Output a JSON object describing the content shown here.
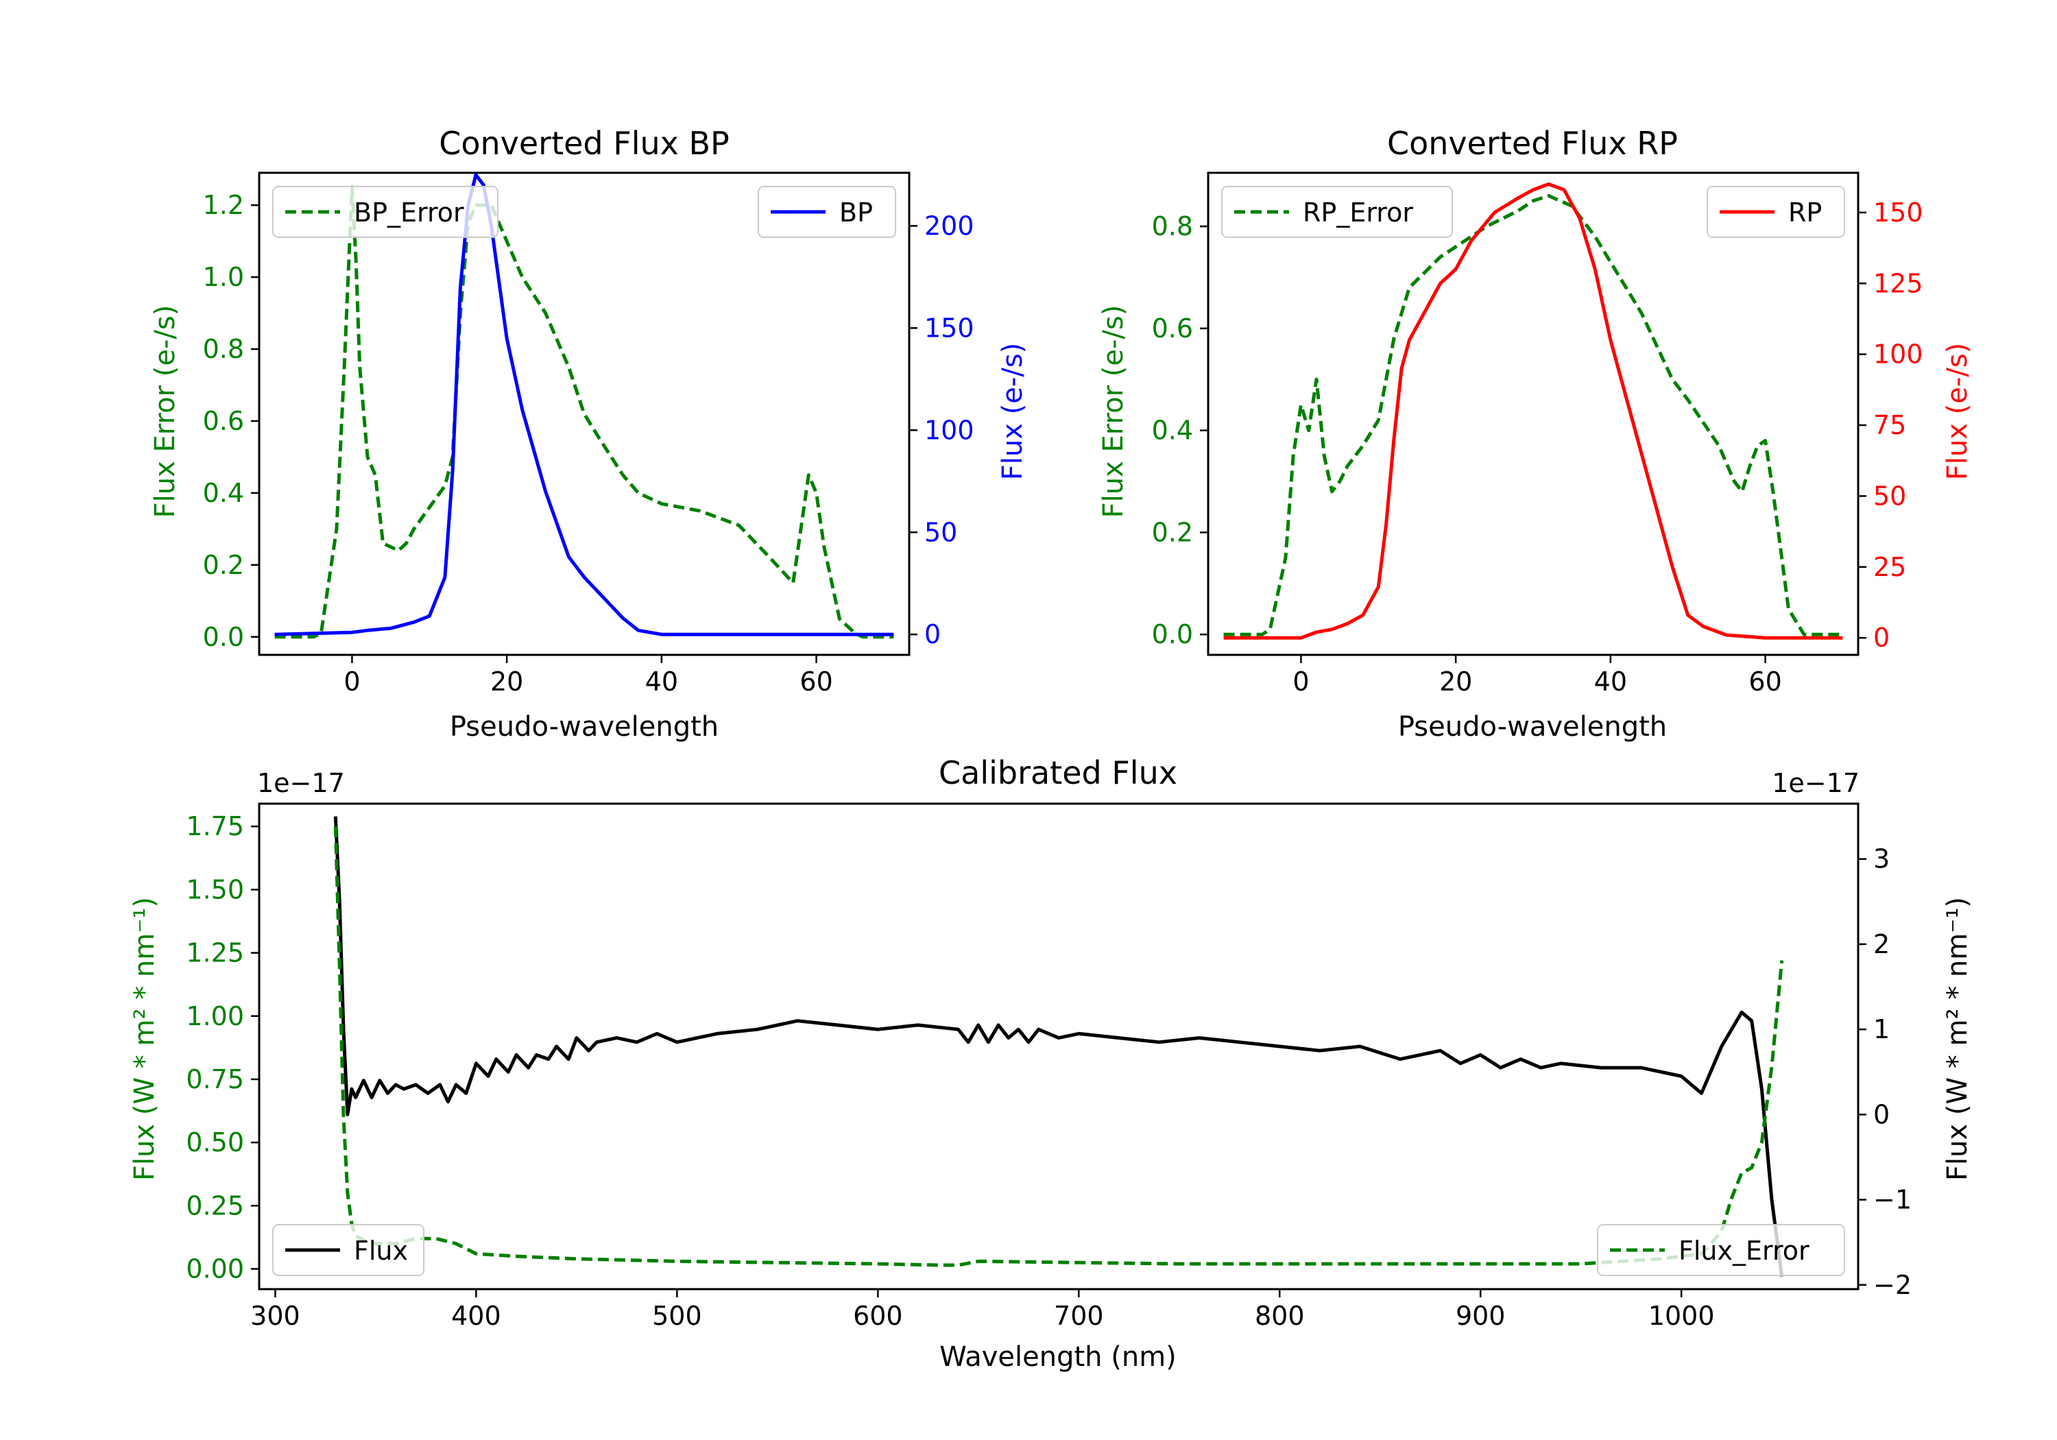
{
  "chart_data": [
    {
      "id": "bp",
      "type": "line",
      "title": "Converted Flux BP",
      "xlabel": "Pseudo-wavelength",
      "xlim": [
        -12,
        72
      ],
      "xticks": [
        0,
        20,
        40,
        60
      ],
      "left_axis": {
        "label": "Flux Error (e-/s)",
        "color": "#008000",
        "ylim": [
          -0.05,
          1.29
        ],
        "ticks": [
          0.0,
          0.2,
          0.4,
          0.6,
          0.8,
          1.0,
          1.2
        ],
        "tick_labels": [
          "0.0",
          "0.2",
          "0.4",
          "0.6",
          "0.8",
          "1.0",
          "1.2"
        ]
      },
      "right_axis": {
        "label": "Flux (e-/s)",
        "color": "#0000ff",
        "ylim": [
          -10,
          226
        ],
        "ticks": [
          0,
          50,
          100,
          150,
          200
        ],
        "tick_labels": [
          "0",
          "50",
          "100",
          "150",
          "200"
        ]
      },
      "series": [
        {
          "name": "BP_Error",
          "axis": "left",
          "color": "#008000",
          "style": "dashed",
          "x": [
            -10,
            -5,
            -4,
            -2,
            -1,
            0,
            0.5,
            1,
            2,
            3,
            4,
            5,
            6,
            7,
            8,
            10,
            12,
            13,
            14,
            15,
            16,
            18,
            20,
            22,
            25,
            28,
            30,
            32,
            35,
            37,
            40,
            45,
            50,
            54,
            57,
            58,
            59,
            60,
            61,
            63,
            65,
            66,
            70
          ],
          "y": [
            0,
            0,
            0.01,
            0.3,
            0.75,
            1.25,
            1.05,
            0.75,
            0.5,
            0.45,
            0.26,
            0.25,
            0.24,
            0.26,
            0.3,
            0.36,
            0.42,
            0.5,
            0.9,
            1.15,
            1.2,
            1.2,
            1.1,
            1.0,
            0.9,
            0.75,
            0.62,
            0.55,
            0.45,
            0.4,
            0.37,
            0.35,
            0.31,
            0.22,
            0.15,
            0.3,
            0.45,
            0.4,
            0.25,
            0.05,
            0.01,
            0,
            0
          ]
        },
        {
          "name": "BP",
          "axis": "right",
          "color": "#0000ff",
          "style": "solid",
          "x": [
            -10,
            0,
            2,
            5,
            8,
            10,
            12,
            13,
            14,
            15,
            16,
            17,
            18,
            20,
            22,
            25,
            28,
            30,
            32,
            35,
            37,
            40,
            45,
            50,
            55,
            60,
            70
          ],
          "y": [
            0,
            1,
            2,
            3,
            6,
            9,
            28,
            80,
            170,
            210,
            225,
            220,
            200,
            145,
            110,
            70,
            38,
            28,
            20,
            8,
            2,
            0,
            0,
            0,
            0,
            0,
            0
          ]
        }
      ],
      "legend": [
        {
          "label": "BP_Error",
          "placement": "upper-left"
        },
        {
          "label": "BP",
          "placement": "upper-right"
        }
      ]
    },
    {
      "id": "rp",
      "type": "line",
      "title": "Converted Flux RP",
      "xlabel": "Pseudo-wavelength",
      "xlim": [
        -12,
        72
      ],
      "xticks": [
        0,
        20,
        40,
        60
      ],
      "left_axis": {
        "label": "Flux Error (e-/s)",
        "color": "#008000",
        "ylim": [
          -0.04,
          0.905
        ],
        "ticks": [
          0.0,
          0.2,
          0.4,
          0.6,
          0.8
        ],
        "tick_labels": [
          "0.0",
          "0.2",
          "0.4",
          "0.6",
          "0.8"
        ]
      },
      "right_axis": {
        "label": "Flux (e-/s)",
        "color": "#ff0000",
        "ylim": [
          -6,
          164
        ],
        "ticks": [
          0,
          25,
          50,
          75,
          100,
          125,
          150
        ],
        "tick_labels": [
          "0",
          "25",
          "50",
          "75",
          "100",
          "125",
          "150"
        ]
      },
      "series": [
        {
          "name": "RP_Error",
          "axis": "left",
          "color": "#008000",
          "style": "dashed",
          "x": [
            -10,
            -5,
            -4,
            -2,
            -1,
            0,
            1,
            2,
            3,
            4,
            5,
            6,
            8,
            10,
            12,
            14,
            16,
            18,
            20,
            24,
            28,
            30,
            32,
            35,
            38,
            40,
            44,
            48,
            50,
            54,
            56,
            57,
            58,
            59,
            60,
            61,
            63,
            65,
            66,
            70
          ],
          "y": [
            0,
            0,
            0.01,
            0.15,
            0.35,
            0.45,
            0.4,
            0.5,
            0.35,
            0.28,
            0.3,
            0.33,
            0.37,
            0.42,
            0.58,
            0.68,
            0.71,
            0.74,
            0.76,
            0.8,
            0.83,
            0.85,
            0.86,
            0.84,
            0.78,
            0.73,
            0.63,
            0.5,
            0.46,
            0.37,
            0.3,
            0.28,
            0.33,
            0.37,
            0.38,
            0.28,
            0.05,
            0,
            0,
            0
          ]
        },
        {
          "name": "RP",
          "axis": "right",
          "color": "#ff0000",
          "style": "solid",
          "x": [
            -10,
            0,
            2,
            4,
            6,
            8,
            10,
            11,
            12,
            13,
            14,
            16,
            18,
            20,
            22,
            25,
            28,
            30,
            32,
            34,
            36,
            38,
            40,
            42,
            45,
            48,
            50,
            52,
            55,
            60,
            70
          ],
          "y": [
            0,
            0,
            2,
            3,
            5,
            8,
            18,
            40,
            70,
            95,
            105,
            115,
            125,
            130,
            140,
            150,
            155,
            158,
            160,
            158,
            148,
            130,
            105,
            85,
            55,
            25,
            8,
            4,
            1,
            0,
            0
          ]
        }
      ],
      "legend": [
        {
          "label": "RP_Error",
          "placement": "upper-left"
        },
        {
          "label": "RP",
          "placement": "upper-right"
        }
      ]
    },
    {
      "id": "cal",
      "type": "line",
      "title": "Calibrated Flux",
      "xlabel": "Wavelength (nm)",
      "xlim": [
        292,
        1088
      ],
      "xticks": [
        300,
        400,
        500,
        600,
        700,
        800,
        900,
        1000
      ],
      "left_axis": {
        "label": "Flux (W * m² * nm⁻¹)",
        "color": "#008000",
        "ylim": [
          -0.08,
          1.84
        ],
        "ticks": [
          0.0,
          0.25,
          0.5,
          0.75,
          1.0,
          1.25,
          1.5,
          1.75
        ],
        "tick_labels": [
          "0.00",
          "0.25",
          "0.50",
          "0.75",
          "1.00",
          "1.25",
          "1.50",
          "1.75"
        ],
        "offset_label": "1e−17"
      },
      "right_axis": {
        "label": "Flux (W * m² * nm⁻¹)",
        "color": "#000000",
        "ylim": [
          -2.05,
          3.65
        ],
        "ticks": [
          -2,
          -1,
          0,
          1,
          2,
          3
        ],
        "tick_labels": [
          "−2",
          "−1",
          "0",
          "1",
          "2",
          "3"
        ],
        "offset_label": "1e−17"
      },
      "series": [
        {
          "name": "Flux",
          "axis": "right",
          "color": "#000000",
          "style": "solid",
          "x": [
            330,
            332,
            334,
            336,
            338,
            340,
            344,
            348,
            352,
            356,
            360,
            364,
            370,
            376,
            382,
            386,
            390,
            395,
            400,
            406,
            410,
            416,
            420,
            426,
            430,
            436,
            440,
            446,
            450,
            456,
            460,
            470,
            480,
            490,
            500,
            520,
            540,
            560,
            580,
            600,
            620,
            640,
            645,
            650,
            655,
            660,
            665,
            670,
            675,
            680,
            690,
            700,
            720,
            740,
            760,
            780,
            800,
            820,
            840,
            860,
            880,
            890,
            900,
            910,
            920,
            930,
            940,
            960,
            980,
            1000,
            1010,
            1020,
            1030,
            1035,
            1040,
            1045,
            1050
          ],
          "y": [
            3.5,
            2.5,
            1.0,
            0.0,
            0.3,
            0.2,
            0.4,
            0.2,
            0.4,
            0.25,
            0.35,
            0.3,
            0.35,
            0.25,
            0.35,
            0.15,
            0.35,
            0.25,
            0.6,
            0.45,
            0.65,
            0.5,
            0.7,
            0.55,
            0.7,
            0.65,
            0.8,
            0.65,
            0.9,
            0.75,
            0.85,
            0.9,
            0.85,
            0.95,
            0.85,
            0.95,
            1.0,
            1.1,
            1.05,
            1.0,
            1.05,
            1.0,
            0.85,
            1.05,
            0.85,
            1.05,
            0.9,
            1.0,
            0.85,
            1.0,
            0.9,
            0.95,
            0.9,
            0.85,
            0.9,
            0.85,
            0.8,
            0.75,
            0.8,
            0.65,
            0.75,
            0.6,
            0.7,
            0.55,
            0.65,
            0.55,
            0.6,
            0.55,
            0.55,
            0.45,
            0.25,
            0.8,
            1.2,
            1.1,
            0.3,
            -1.0,
            -1.9
          ]
        },
        {
          "name": "Flux_Error",
          "axis": "left",
          "color": "#008000",
          "style": "dashed",
          "x": [
            330,
            332,
            334,
            336,
            338,
            340,
            345,
            350,
            360,
            370,
            380,
            385,
            390,
            400,
            420,
            450,
            500,
            550,
            600,
            630,
            640,
            650,
            700,
            750,
            800,
            850,
            900,
            950,
            990,
            1000,
            1010,
            1015,
            1020,
            1025,
            1030,
            1035,
            1040,
            1045,
            1050
          ],
          "y": [
            1.75,
            1.2,
            0.6,
            0.3,
            0.18,
            0.13,
            0.11,
            0.1,
            0.1,
            0.12,
            0.12,
            0.11,
            0.1,
            0.06,
            0.05,
            0.04,
            0.03,
            0.025,
            0.02,
            0.015,
            0.015,
            0.03,
            0.025,
            0.02,
            0.02,
            0.02,
            0.02,
            0.02,
            0.04,
            0.05,
            0.06,
            0.1,
            0.15,
            0.28,
            0.38,
            0.4,
            0.5,
            0.8,
            1.22
          ]
        }
      ],
      "legend": [
        {
          "label": "Flux",
          "placement": "lower-left"
        },
        {
          "label": "Flux_Error",
          "placement": "lower-right"
        }
      ]
    }
  ]
}
